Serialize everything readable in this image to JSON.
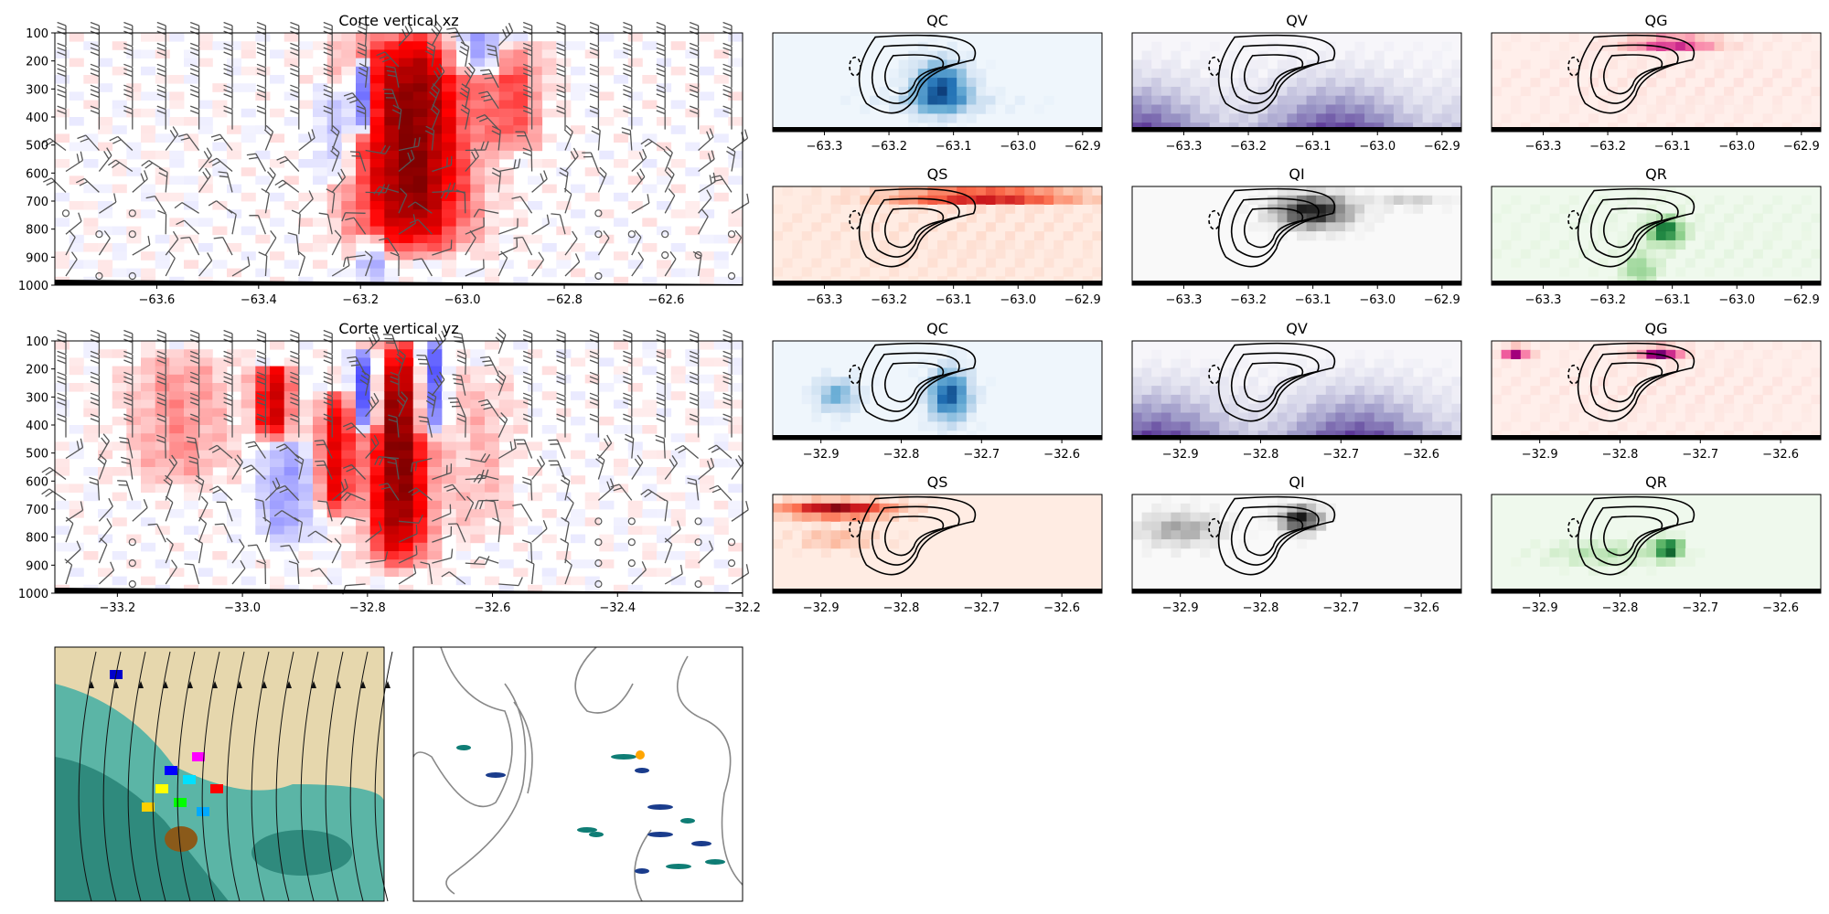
{
  "figure": {
    "background": "#ffffff"
  },
  "chart_data": [
    {
      "id": "xz-main",
      "type": "heatmap",
      "title": "Corte vertical xz",
      "xlim": [
        -63.8,
        -62.45
      ],
      "ylim": [
        1000,
        100
      ],
      "y_inverted": true,
      "xticks": [
        -63.6,
        -63.4,
        -63.2,
        -63.0,
        -62.8,
        -62.6
      ],
      "xtick_labels": [
        "−63.6",
        "−63.4",
        "−63.2",
        "−63.0",
        "−62.8",
        "−62.6"
      ],
      "yticks": [
        100,
        200,
        300,
        400,
        500,
        600,
        700,
        800,
        900,
        1000
      ],
      "ytick_labels": [
        "100",
        "200",
        "300",
        "400",
        "500",
        "600",
        "700",
        "800",
        "900",
        "1000"
      ],
      "colormap": "bwr",
      "overlays": [
        "wind barbs",
        "calm circles",
        "terrain"
      ],
      "features": [
        {
          "x": -63.1,
          "p_top": 100,
          "p_bottom": 880,
          "width": 0.16,
          "sign": 1,
          "intensity": 1.0
        },
        {
          "x": -63.2,
          "p_top": 220,
          "p_bottom": 440,
          "width": 0.03,
          "sign": -1,
          "intensity": 0.9
        },
        {
          "x": -63.25,
          "p_top": 300,
          "p_bottom": 620,
          "width": 0.06,
          "sign": -1,
          "intensity": 0.3
        },
        {
          "x": -62.97,
          "p_top": 120,
          "p_bottom": 220,
          "width": 0.08,
          "sign": -1,
          "intensity": 0.5
        },
        {
          "x": -62.9,
          "p_top": 150,
          "p_bottom": 500,
          "width": 0.08,
          "sign": 1,
          "intensity": 0.4
        },
        {
          "x": -63.18,
          "p_top": 850,
          "p_bottom": 960,
          "width": 0.03,
          "sign": -1,
          "intensity": 0.4
        }
      ]
    },
    {
      "id": "yz-main",
      "type": "heatmap",
      "title": "Corte vertical yz",
      "xlim": [
        -33.3,
        -32.2
      ],
      "ylim": [
        1000,
        100
      ],
      "y_inverted": true,
      "xticks": [
        -33.2,
        -33.0,
        -32.8,
        -32.6,
        -32.4,
        -32.2
      ],
      "xtick_labels": [
        "−33.2",
        "−33.0",
        "−32.8",
        "−32.6",
        "−32.4",
        "−32.2"
      ],
      "yticks": [
        100,
        200,
        300,
        400,
        500,
        600,
        700,
        800,
        900,
        1000
      ],
      "ytick_labels": [
        "100",
        "200",
        "300",
        "400",
        "500",
        "600",
        "700",
        "800",
        "900",
        "1000"
      ],
      "colormap": "bwr",
      "overlays": [
        "wind barbs",
        "calm circles",
        "terrain"
      ],
      "features": [
        {
          "x": -32.75,
          "p_top": 100,
          "p_bottom": 900,
          "width": 0.07,
          "sign": 1,
          "intensity": 1.0
        },
        {
          "x": -32.8,
          "p_top": 150,
          "p_bottom": 400,
          "width": 0.03,
          "sign": -1,
          "intensity": 0.9
        },
        {
          "x": -32.7,
          "p_top": 120,
          "p_bottom": 420,
          "width": 0.03,
          "sign": -1,
          "intensity": 0.85
        },
        {
          "x": -32.95,
          "p_top": 200,
          "p_bottom": 420,
          "width": 0.04,
          "sign": 1,
          "intensity": 0.8
        },
        {
          "x": -32.85,
          "p_top": 300,
          "p_bottom": 700,
          "width": 0.04,
          "sign": 1,
          "intensity": 0.7
        },
        {
          "x": -32.93,
          "p_top": 480,
          "p_bottom": 800,
          "width": 0.06,
          "sign": -1,
          "intensity": 0.35
        },
        {
          "x": -33.1,
          "p_top": 150,
          "p_bottom": 600,
          "width": 0.12,
          "sign": 1,
          "intensity": 0.25
        },
        {
          "x": -32.62,
          "p_top": 200,
          "p_bottom": 800,
          "width": 0.08,
          "sign": 1,
          "intensity": 0.15
        }
      ]
    },
    {
      "id": "xz-QC",
      "type": "heatmap",
      "title": "QC",
      "colormap": "Blues",
      "xlim": [
        -63.38,
        -62.87
      ],
      "xticks": [
        -63.3,
        -63.2,
        -63.1,
        -63.0,
        -62.9
      ],
      "xtick_labels": [
        "−63.3",
        "−63.2",
        "−63.1",
        "−63.0",
        "−62.9"
      ],
      "fields": [
        {
          "x": -63.12,
          "y": 0.55,
          "sx": 0.05,
          "sy": 0.3,
          "a": 0.85
        },
        {
          "x": -63.12,
          "y": 0.7,
          "sx": 0.12,
          "sy": 0.12,
          "a": 0.2
        }
      ]
    },
    {
      "id": "xz-QV",
      "type": "heatmap",
      "title": "QV",
      "colormap": "Purples",
      "xlim": [
        -63.38,
        -62.87
      ],
      "xticks": [
        -63.3,
        -63.2,
        -63.1,
        -63.0,
        -62.9
      ],
      "xtick_labels": [
        "−63.3",
        "−63.2",
        "−63.1",
        "−63.0",
        "−62.9"
      ],
      "fields": [
        {
          "kind": "vertical",
          "base": 0.85
        }
      ]
    },
    {
      "id": "xz-QG",
      "type": "heatmap",
      "title": "QG",
      "colormap": "RdPu",
      "xlim": [
        -63.38,
        -62.87
      ],
      "xticks": [
        -63.3,
        -63.2,
        -63.1,
        -63.0,
        -62.9
      ],
      "xtick_labels": [
        "−63.3",
        "−63.2",
        "−63.1",
        "−63.0",
        "−62.9"
      ],
      "fields": [
        {
          "x": -63.1,
          "y": 0.1,
          "sx": 0.08,
          "sy": 0.06,
          "a": 0.95
        },
        {
          "x": -63.1,
          "y": 0.5,
          "sx": 0.4,
          "sy": 0.6,
          "a": 0.06
        }
      ]
    },
    {
      "id": "xz-QS",
      "type": "heatmap",
      "title": "QS",
      "colormap": "Reds",
      "xlim": [
        -63.38,
        -62.87
      ],
      "xticks": [
        -63.3,
        -63.2,
        -63.1,
        -63.0,
        -62.9
      ],
      "xtick_labels": [
        "−63.3",
        "−63.2",
        "−63.1",
        "−63.0",
        "−62.9"
      ],
      "fields": [
        {
          "x": -63.05,
          "y": 0.1,
          "sx": 0.16,
          "sy": 0.08,
          "a": 0.9
        },
        {
          "x": -63.1,
          "y": 0.5,
          "sx": 0.4,
          "sy": 0.6,
          "a": 0.06
        }
      ]
    },
    {
      "id": "xz-QI",
      "type": "heatmap",
      "title": "QI",
      "colormap": "Greys",
      "xlim": [
        -63.38,
        -62.87
      ],
      "xticks": [
        -63.3,
        -63.2,
        -63.1,
        -63.0,
        -62.9
      ],
      "xtick_labels": [
        "−63.3",
        "−63.2",
        "−63.1",
        "−63.0",
        "−62.9"
      ],
      "fields": [
        {
          "x": -63.1,
          "y": 0.25,
          "sx": 0.07,
          "sy": 0.2,
          "a": 0.95
        },
        {
          "x": -62.95,
          "y": 0.15,
          "sx": 0.06,
          "sy": 0.08,
          "a": 0.3
        }
      ]
    },
    {
      "id": "xz-QR",
      "type": "heatmap",
      "title": "QR",
      "colormap": "Greens",
      "xlim": [
        -63.38,
        -62.87
      ],
      "xticks": [
        -63.3,
        -63.2,
        -63.1,
        -63.0,
        -62.9
      ],
      "xtick_labels": [
        "−63.3",
        "−63.2",
        "−63.1",
        "−63.0",
        "−62.9"
      ],
      "fields": [
        {
          "x": -63.11,
          "y": 0.45,
          "sx": 0.03,
          "sy": 0.15,
          "a": 0.85
        },
        {
          "x": -63.15,
          "y": 0.85,
          "sx": 0.03,
          "sy": 0.2,
          "a": 0.4
        },
        {
          "x": -63.1,
          "y": 0.5,
          "sx": 0.4,
          "sy": 0.6,
          "a": 0.05
        }
      ]
    },
    {
      "id": "yz-QC",
      "type": "heatmap",
      "title": "QC",
      "colormap": "Blues",
      "xlim": [
        -32.96,
        -32.55
      ],
      "xticks": [
        -32.9,
        -32.8,
        -32.7,
        -32.6
      ],
      "xtick_labels": [
        "−32.9",
        "−32.8",
        "−32.7",
        "−32.6"
      ],
      "fields": [
        {
          "x": -32.74,
          "y": 0.55,
          "sx": 0.03,
          "sy": 0.3,
          "a": 0.85
        },
        {
          "x": -32.88,
          "y": 0.55,
          "sx": 0.03,
          "sy": 0.2,
          "a": 0.5
        }
      ]
    },
    {
      "id": "yz-QV",
      "type": "heatmap",
      "title": "QV",
      "colormap": "Purples",
      "xlim": [
        -32.96,
        -32.55
      ],
      "xticks": [
        -32.9,
        -32.8,
        -32.7,
        -32.6
      ],
      "xtick_labels": [
        "−32.9",
        "−32.8",
        "−32.7",
        "−32.6"
      ],
      "fields": [
        {
          "kind": "vertical",
          "base": 0.85
        }
      ]
    },
    {
      "id": "yz-QG",
      "type": "heatmap",
      "title": "QG",
      "colormap": "RdPu",
      "xlim": [
        -32.96,
        -32.55
      ],
      "xticks": [
        -32.9,
        -32.8,
        -32.7,
        -32.6
      ],
      "xtick_labels": [
        "−32.9",
        "−32.8",
        "−32.7",
        "−32.6"
      ],
      "fields": [
        {
          "x": -32.75,
          "y": 0.12,
          "sx": 0.03,
          "sy": 0.07,
          "a": 0.9
        },
        {
          "x": -32.93,
          "y": 0.12,
          "sx": 0.02,
          "sy": 0.07,
          "a": 0.8
        },
        {
          "x": -32.75,
          "y": 0.5,
          "sx": 0.3,
          "sy": 0.6,
          "a": 0.06
        }
      ]
    },
    {
      "id": "yz-QS",
      "type": "heatmap",
      "title": "QS",
      "colormap": "Reds",
      "xlim": [
        -32.96,
        -32.55
      ],
      "xticks": [
        -32.9,
        -32.8,
        -32.7,
        -32.6
      ],
      "xtick_labels": [
        "−32.9",
        "−32.8",
        "−32.7",
        "−32.6"
      ],
      "fields": [
        {
          "x": -32.88,
          "y": 0.15,
          "sx": 0.08,
          "sy": 0.1,
          "a": 0.9
        },
        {
          "x": -32.88,
          "y": 0.45,
          "sx": 0.06,
          "sy": 0.12,
          "a": 0.25
        }
      ]
    },
    {
      "id": "yz-QI",
      "type": "heatmap",
      "title": "QI",
      "colormap": "Greys",
      "xlim": [
        -32.96,
        -32.55
      ],
      "xticks": [
        -32.9,
        -32.8,
        -32.7,
        -32.6
      ],
      "xtick_labels": [
        "−32.9",
        "−32.8",
        "−32.7",
        "−32.6"
      ],
      "fields": [
        {
          "x": -32.75,
          "y": 0.25,
          "sx": 0.03,
          "sy": 0.15,
          "a": 0.95
        },
        {
          "x": -32.9,
          "y": 0.35,
          "sx": 0.06,
          "sy": 0.2,
          "a": 0.45
        }
      ]
    },
    {
      "id": "yz-QR",
      "type": "heatmap",
      "title": "QR",
      "colormap": "Greens",
      "xlim": [
        -32.96,
        -32.55
      ],
      "xticks": [
        -32.9,
        -32.8,
        -32.7,
        -32.6
      ],
      "xtick_labels": [
        "−32.9",
        "−32.8",
        "−32.7",
        "−32.6"
      ],
      "fields": [
        {
          "x": -32.74,
          "y": 0.55,
          "sx": 0.02,
          "sy": 0.12,
          "a": 0.9
        },
        {
          "x": -32.82,
          "y": 0.6,
          "sx": 0.08,
          "sy": 0.15,
          "a": 0.3
        }
      ]
    },
    {
      "id": "map-streamlines",
      "type": "heatmap",
      "title": "",
      "description_layers": [
        "terrain shading teal/tan",
        "streamlines",
        "precipitation colors"
      ]
    },
    {
      "id": "map-overview",
      "type": "heatmap",
      "title": "",
      "description_layers": [
        "coastline/terrain contours",
        "precipitation cells",
        "orange marker"
      ]
    }
  ]
}
